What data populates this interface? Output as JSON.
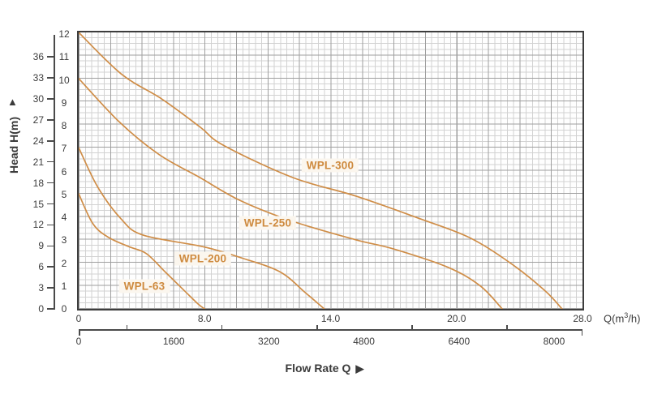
{
  "labels": {
    "head_axis": "Head H(m)",
    "head_arrow": "▲",
    "flow_axis": "Flow Rate Q",
    "flow_arrow": "▶",
    "q_unit_pre": "Q(m",
    "q_unit_sup": "3",
    "q_unit_post": "/h)"
  },
  "colors": {
    "curve": "#cf8d47",
    "curve_label_text": "#ce8a3e",
    "curve_label_bg": "#fbf6ee",
    "axis": "#4a4a4a",
    "text": "#3b3b3b",
    "grid_minor": "#d2d2d2",
    "grid_major": "#9f9f9f"
  },
  "chart_data": {
    "type": "line",
    "title": "",
    "xlabel": "Flow Rate Q",
    "ylabel": "Head H(m)",
    "x_unit": "Q(m³/h)",
    "grid": true,
    "x_axis": {
      "tick_values": [
        0,
        8,
        14,
        20,
        28
      ],
      "tick_labels": [
        "0",
        "8.0",
        "14.0",
        "20.0",
        "28.0"
      ],
      "range": [
        0,
        28
      ],
      "note": "tick labels evenly spaced along axis (non-linear scale)"
    },
    "x_axis_secondary": {
      "tick_labels": [
        "0",
        "1600",
        "3200",
        "4800",
        "6400",
        "8000"
      ],
      "range": [
        0,
        8000
      ]
    },
    "y_axis_inner": {
      "tick_labels": [
        "0",
        "1",
        "2",
        "3",
        "4",
        "5",
        "6",
        "7",
        "8",
        "9",
        "10",
        "11",
        "12"
      ],
      "range": [
        0,
        12
      ]
    },
    "y_axis_outer": {
      "tick_labels": [
        "0",
        "3",
        "6",
        "9",
        "12",
        "15",
        "18",
        "21",
        "24",
        "27",
        "30",
        "33",
        "36"
      ],
      "range": [
        0,
        36
      ]
    },
    "series": [
      {
        "name": "WPL-63",
        "points": [
          [
            0,
            5
          ],
          [
            0.9,
            3.7
          ],
          [
            1.9,
            3.1
          ],
          [
            3.2,
            2.7
          ],
          [
            4.3,
            2.4
          ],
          [
            5.5,
            1.6
          ],
          [
            6.7,
            0.8
          ],
          [
            7.6,
            0.2
          ],
          [
            8.0,
            0
          ]
        ]
      },
      {
        "name": "WPL-200",
        "points": [
          [
            0,
            7
          ],
          [
            1.2,
            5.3
          ],
          [
            2.7,
            3.9
          ],
          [
            4.1,
            3.2
          ],
          [
            7.9,
            2.7
          ],
          [
            9.8,
            2.2
          ],
          [
            11.6,
            1.6
          ],
          [
            12.8,
            0.7
          ],
          [
            13.7,
            0
          ]
        ]
      },
      {
        "name": "WPL-250",
        "points": [
          [
            0,
            10
          ],
          [
            2.6,
            8.1
          ],
          [
            5.1,
            6.7
          ],
          [
            7.7,
            5.7
          ],
          [
            9.7,
            4.7
          ],
          [
            12.2,
            3.8
          ],
          [
            15.2,
            3.0
          ],
          [
            17.0,
            2.6
          ],
          [
            19.6,
            1.8
          ],
          [
            21.5,
            1.0
          ],
          [
            22.9,
            0
          ]
        ]
      },
      {
        "name": "WPL-300",
        "points": [
          [
            0,
            12
          ],
          [
            2.7,
            10.2
          ],
          [
            5.3,
            9.1
          ],
          [
            7.7,
            7.9
          ],
          [
            8.9,
            7.1
          ],
          [
            12.2,
            5.7
          ],
          [
            15.2,
            4.9
          ],
          [
            18.3,
            3.9
          ],
          [
            20.8,
            3.1
          ],
          [
            23.4,
            2.0
          ],
          [
            25.6,
            0.8
          ],
          [
            26.7,
            0
          ]
        ]
      }
    ]
  }
}
